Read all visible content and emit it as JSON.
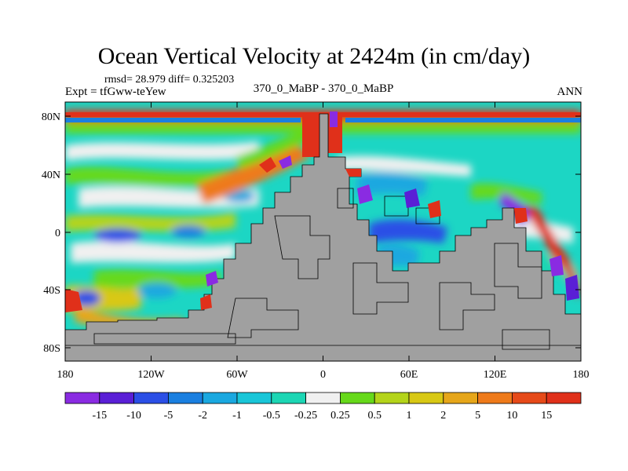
{
  "figure": {
    "title": "Ocean Vertical Velocity at 2424m (in cm/day)",
    "stats": "rmsd= 28.979 diff= 0.325203",
    "experiment": "Expt = tfGww-teYew",
    "comparison": "370_0_MaBP - 370_0_MaBP",
    "season": "ANN"
  },
  "axes": {
    "lat_ticks": [
      "80N",
      "40N",
      "0",
      "40S",
      "80S"
    ],
    "lon_ticks": [
      "180",
      "120W",
      "60W",
      "0",
      "60E",
      "120E",
      "180"
    ]
  },
  "colorbar": {
    "labels": [
      "-15",
      "-10",
      "-5",
      "-2",
      "-1",
      "-0.5",
      "-0.25",
      "0.25",
      "0.5",
      "1",
      "2",
      "5",
      "10",
      "15"
    ],
    "colors": [
      "#8a2be2",
      "#5a1fd6",
      "#2b4fe6",
      "#1a7fe0",
      "#1aa8e0",
      "#19c6d8",
      "#1cd6b4",
      "#f0f0f0",
      "#66d91a",
      "#b4d41a",
      "#d8c814",
      "#e6a61a",
      "#ee7a1a",
      "#e64a19",
      "#e0301a"
    ]
  },
  "map": {
    "land_color": "#a0a0a0",
    "field_colors": {
      "strong_down": "#5a1fd6",
      "down": "#2b4fe6",
      "weak_down": "#1aa8e0",
      "near_zero": "#f0f0f0",
      "weak_up": "#66d91a",
      "up": "#d8c814",
      "strong_up": "#e0301a"
    }
  }
}
